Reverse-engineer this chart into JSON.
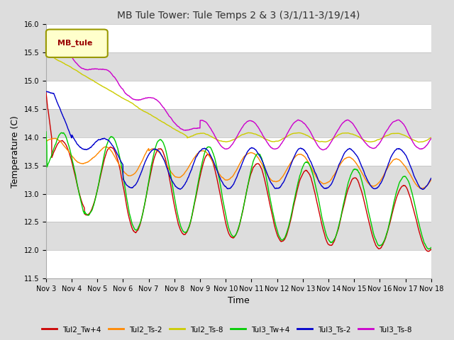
{
  "title": "MB Tule Tower: Tule Temps 2 & 3 (3/1/11-3/19/14)",
  "xlabel": "Time",
  "ylabel": "Temperature (C)",
  "ylim": [
    11.5,
    16.0
  ],
  "yticks": [
    11.5,
    12.0,
    12.5,
    13.0,
    13.5,
    14.0,
    14.5,
    15.0,
    15.5,
    16.0
  ],
  "xtick_labels": [
    "Nov 3",
    "Nov 4",
    "Nov 5",
    "Nov 6",
    "Nov 7",
    "Nov 8",
    "Nov 9",
    "Nov 10",
    "Nov 11",
    "Nov 12",
    "Nov 13",
    "Nov 14",
    "Nov 15",
    "Nov 16",
    "Nov 17",
    "Nov 18"
  ],
  "legend_label": "MB_tule",
  "legend_text_color": "#990000",
  "legend_bg_color": "#ffffcc",
  "legend_border_color": "#999900",
  "series": [
    {
      "name": "Tul2_Tw+4",
      "color": "#cc0000",
      "lw": 1.0
    },
    {
      "name": "Tul2_Ts-2",
      "color": "#ff8800",
      "lw": 1.0
    },
    {
      "name": "Tul2_Ts-8",
      "color": "#cccc00",
      "lw": 1.0
    },
    {
      "name": "Tul3_Tw+4",
      "color": "#00cc00",
      "lw": 1.0
    },
    {
      "name": "Tul3_Ts-2",
      "color": "#0000cc",
      "lw": 1.0
    },
    {
      "name": "Tul3_Ts-8",
      "color": "#cc00cc",
      "lw": 1.0
    }
  ],
  "fig_width": 6.4,
  "fig_height": 4.8,
  "dpi": 100,
  "title_fontsize": 10,
  "tick_fontsize": 7,
  "label_fontsize": 9
}
